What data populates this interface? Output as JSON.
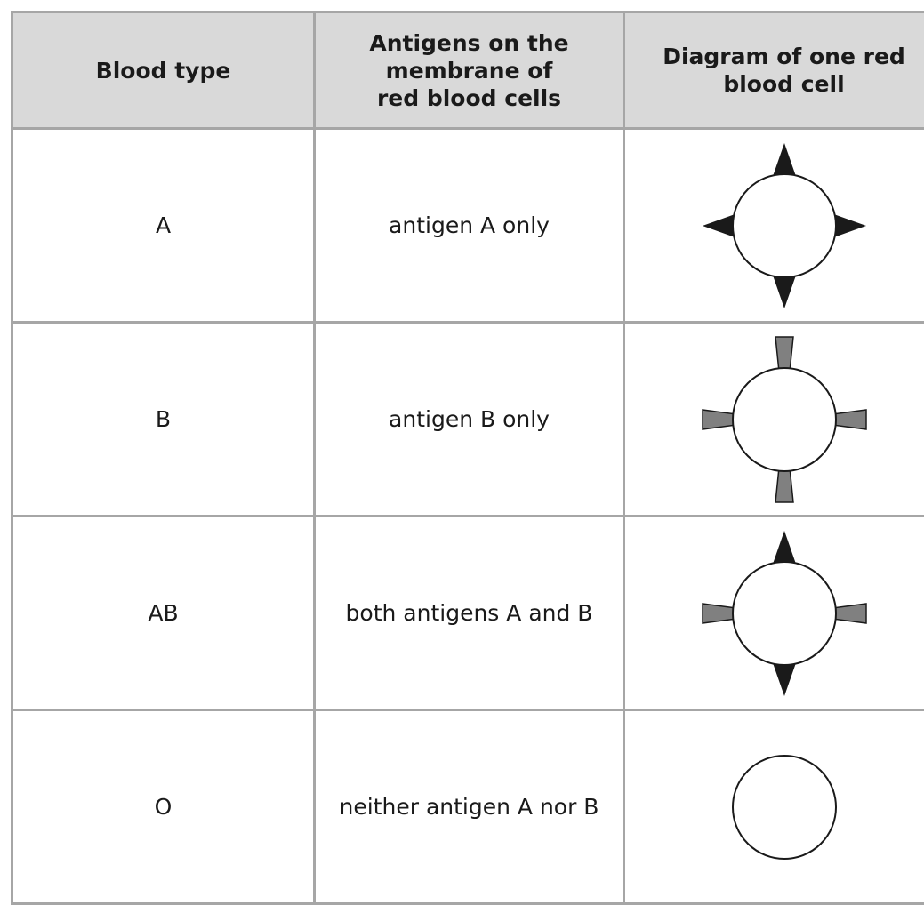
{
  "table": {
    "header": [
      "Blood type",
      [
        "Antigens on the",
        "membrane of",
        "red blood cells"
      ],
      [
        "Diagram of one red",
        "blood cell"
      ]
    ],
    "rows": [
      [
        "A",
        "antigen A only"
      ],
      [
        "B",
        "antigen B only"
      ],
      [
        "AB",
        "both antigens A and B"
      ],
      [
        "O",
        "neither antigen A nor B"
      ]
    ]
  }
}
